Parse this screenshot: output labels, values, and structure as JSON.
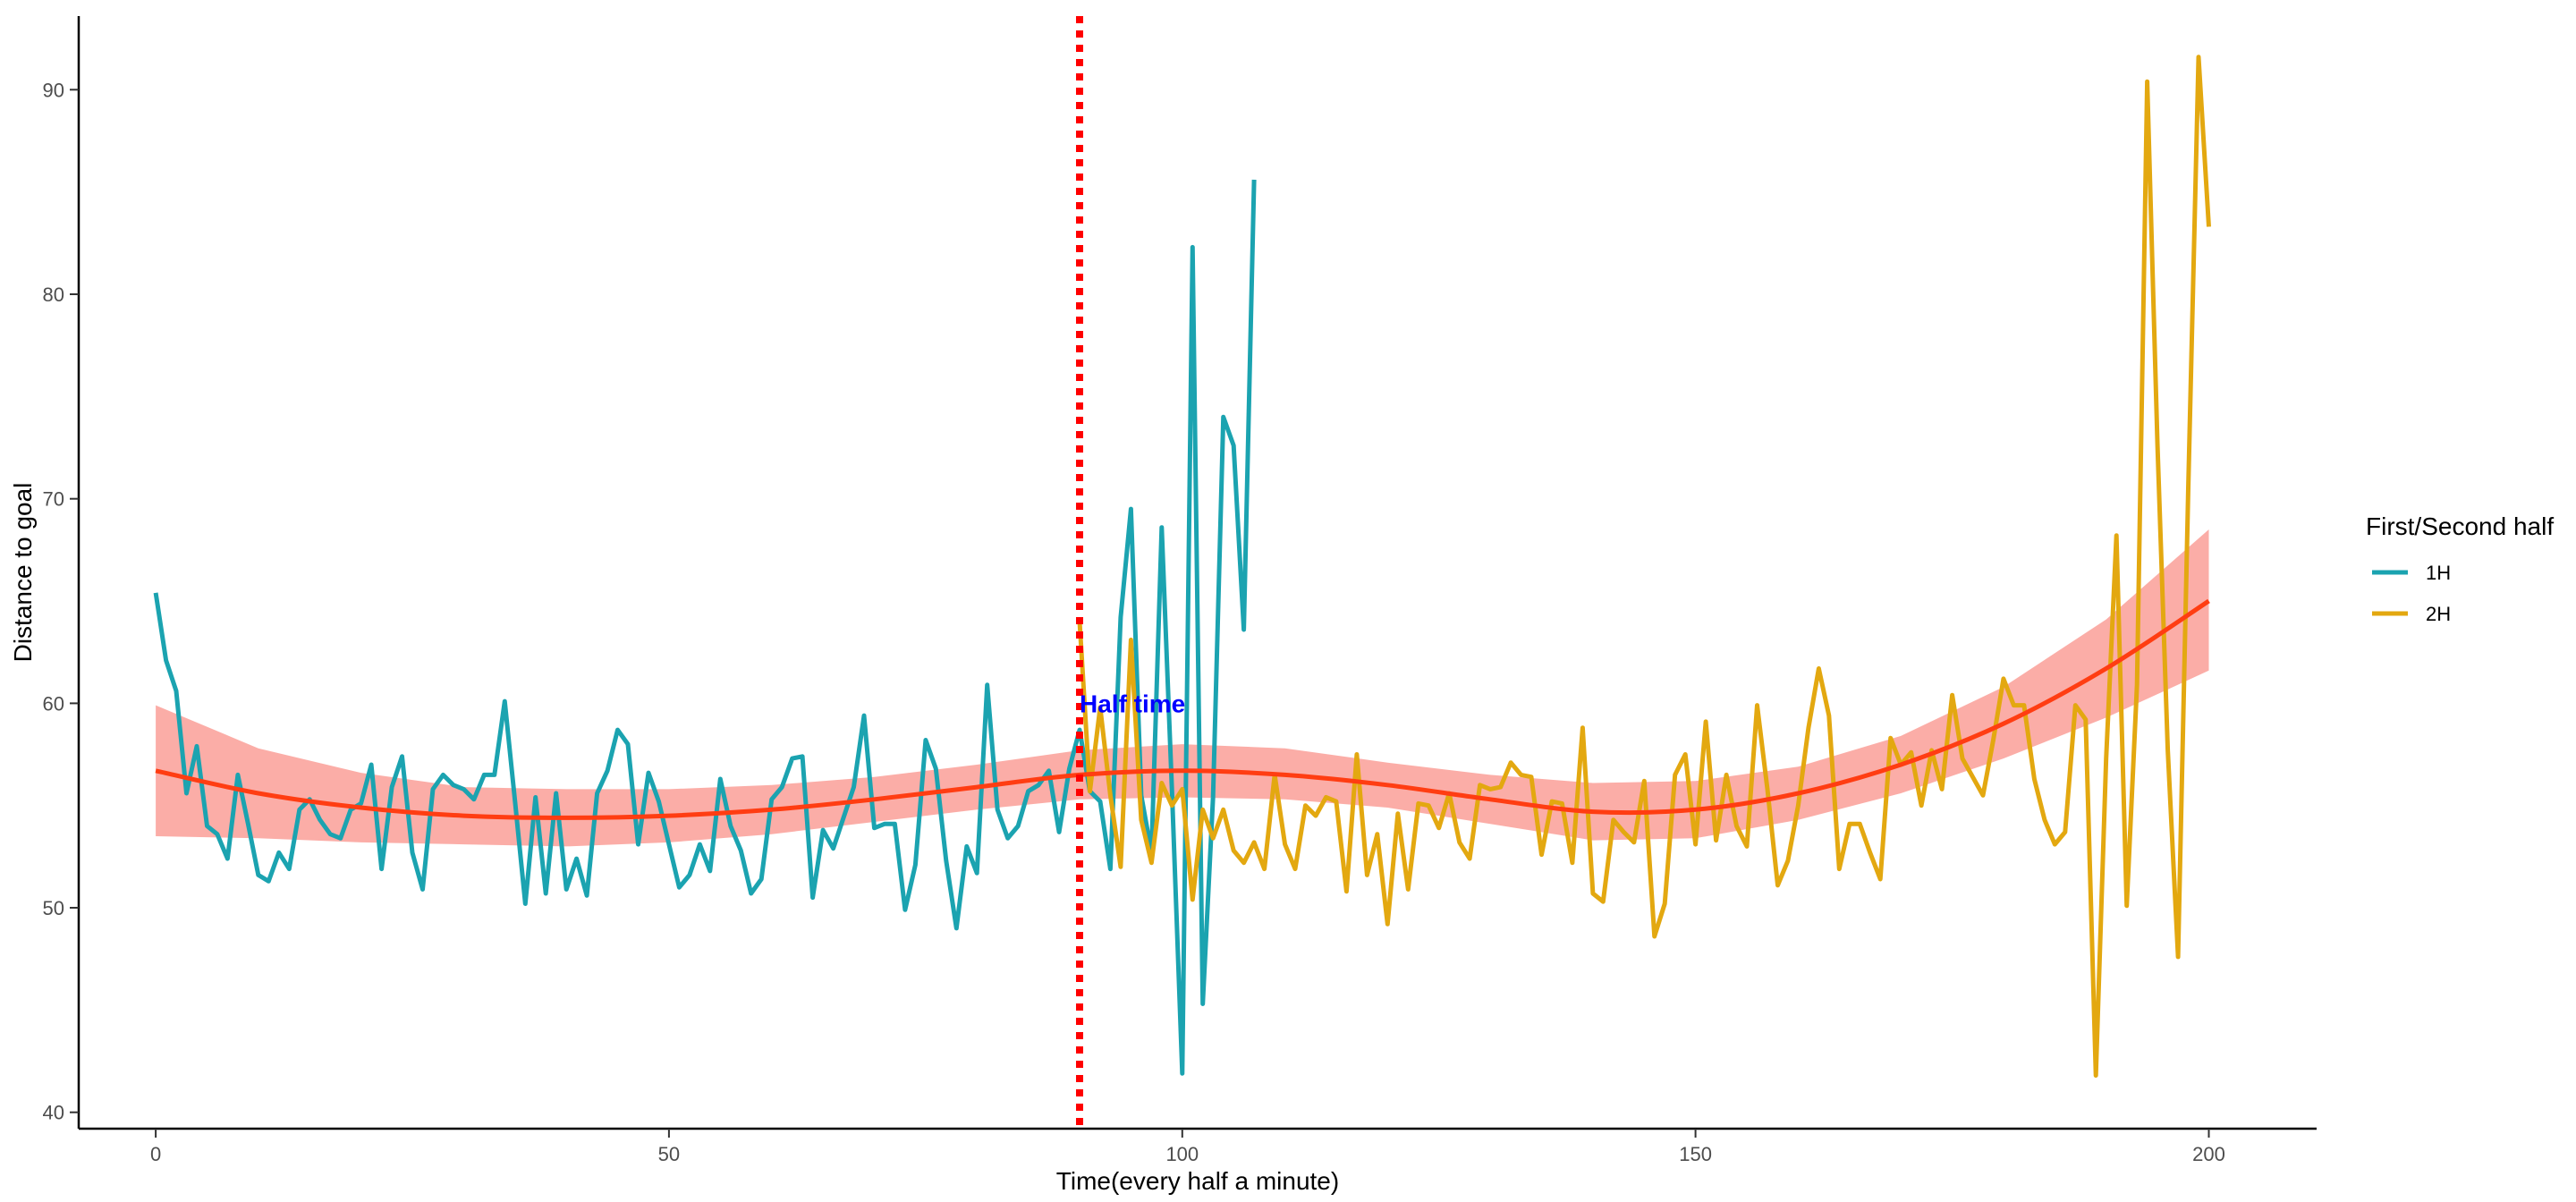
{
  "chart_data": {
    "type": "line",
    "title": "",
    "xlabel": "Time(every half a minute)",
    "ylabel": "Distance to goal",
    "xlim": [
      -7.5,
      210.5
    ],
    "ylim": [
      39.2,
      93.6
    ],
    "x_ticks": [
      0,
      50,
      100,
      150,
      200
    ],
    "y_ticks": [
      40,
      50,
      60,
      70,
      80,
      90
    ],
    "grid": false,
    "legend": {
      "title": "First/Second half",
      "position": "right",
      "entries": [
        {
          "label": "1H",
          "color": "#1ba3b0"
        },
        {
          "label": "2H",
          "color": "#e3a810"
        }
      ]
    },
    "series": [
      {
        "name": "1H",
        "color": "#1ba3b0",
        "x_start": 0,
        "values": [
          65.4,
          62.1,
          60.6,
          55.6,
          57.9,
          54.0,
          53.6,
          52.4,
          56.5,
          54.1,
          51.6,
          51.3,
          52.7,
          51.9,
          54.8,
          55.3,
          54.3,
          53.6,
          53.4,
          54.8,
          55.1,
          57.0,
          51.9,
          55.9,
          57.4,
          52.7,
          50.9,
          55.8,
          56.5,
          56.0,
          55.8,
          55.3,
          56.5,
          56.5,
          60.1,
          55.2,
          50.2,
          55.4,
          50.7,
          55.6,
          50.9,
          52.4,
          50.6,
          55.6,
          56.7,
          58.7,
          58.0,
          53.1,
          56.6,
          55.2,
          53.1,
          51.0,
          51.6,
          53.1,
          51.8,
          56.3,
          54.0,
          52.8,
          50.7,
          51.4,
          55.3,
          55.9,
          57.3,
          57.4,
          50.5,
          53.8,
          52.9,
          54.4,
          55.9,
          59.4,
          53.9,
          54.1,
          54.1,
          49.9,
          52.1,
          58.2,
          56.8,
          52.3,
          49.0,
          53.0,
          51.7,
          60.9,
          54.8,
          53.4,
          54.0,
          55.7,
          56.0,
          56.7,
          53.7,
          56.8,
          58.7,
          55.7,
          55.2,
          51.9,
          64.2,
          69.5,
          55.5,
          52.7,
          68.6,
          55.7,
          41.9,
          82.3,
          45.3,
          55.4,
          74.0,
          72.6,
          63.6,
          85.6
        ]
      },
      {
        "name": "2H",
        "color": "#e3a810",
        "x_start": 90,
        "values": [
          64.0,
          55.7,
          59.8,
          55.5,
          52.0,
          63.1,
          54.3,
          52.2,
          56.1,
          55.0,
          55.8,
          50.4,
          54.8,
          53.4,
          54.8,
          52.8,
          52.2,
          53.2,
          51.9,
          56.5,
          53.1,
          51.9,
          55.0,
          54.5,
          55.4,
          55.2,
          50.8,
          57.5,
          51.6,
          53.6,
          49.2,
          54.6,
          50.9,
          55.1,
          55.0,
          53.9,
          55.6,
          53.2,
          52.4,
          56.0,
          55.8,
          55.9,
          57.1,
          56.5,
          56.4,
          52.6,
          55.2,
          55.1,
          52.2,
          58.8,
          50.7,
          50.3,
          54.3,
          53.7,
          53.2,
          56.2,
          48.6,
          50.2,
          56.5,
          57.5,
          53.1,
          59.1,
          53.3,
          56.5,
          54.0,
          53.0,
          59.9,
          55.8,
          51.1,
          52.3,
          55.0,
          58.8,
          61.7,
          59.4,
          51.9,
          54.1,
          54.1,
          52.7,
          51.4,
          58.3,
          57.0,
          57.6,
          55.0,
          57.7,
          55.8,
          60.4,
          57.3,
          56.4,
          55.5,
          58.2,
          61.2,
          59.9,
          59.9,
          56.3,
          54.3,
          53.1,
          53.7,
          59.9,
          59.2,
          41.8,
          57.3,
          68.2,
          50.1,
          60.9,
          90.4,
          72.6,
          57.7,
          47.6,
          70.5,
          91.6,
          83.3
        ]
      }
    ],
    "smooth": {
      "color": "#ff3d12",
      "band_color": "#f8766d",
      "x": [
        0,
        10,
        20,
        30,
        40,
        50,
        60,
        70,
        80,
        90,
        100,
        110,
        120,
        130,
        140,
        150,
        160,
        170,
        180,
        190,
        200
      ],
      "fit": [
        56.7,
        55.6,
        54.9,
        54.5,
        54.4,
        54.5,
        54.8,
        55.3,
        55.9,
        56.5,
        56.7,
        56.5,
        56.0,
        55.3,
        54.7,
        54.8,
        55.6,
        57.0,
        59.0,
        61.7,
        65.0
      ],
      "lower": [
        53.5,
        53.4,
        53.2,
        53.1,
        53.0,
        53.2,
        53.6,
        54.2,
        54.8,
        55.3,
        55.4,
        55.3,
        54.9,
        54.1,
        53.3,
        53.4,
        54.3,
        55.6,
        57.3,
        59.3,
        61.6
      ],
      "upper": [
        59.9,
        57.8,
        56.6,
        55.9,
        55.8,
        55.8,
        56.0,
        56.4,
        57.0,
        57.7,
        58.0,
        57.8,
        57.1,
        56.5,
        56.1,
        56.2,
        56.9,
        58.4,
        60.8,
        64.1,
        68.5
      ]
    },
    "vline": {
      "x": 90,
      "color": "#ff0000",
      "style": "dotted"
    },
    "annotation": {
      "text": "Half time",
      "x": 90,
      "y": 60,
      "color": "#0000ff"
    }
  }
}
